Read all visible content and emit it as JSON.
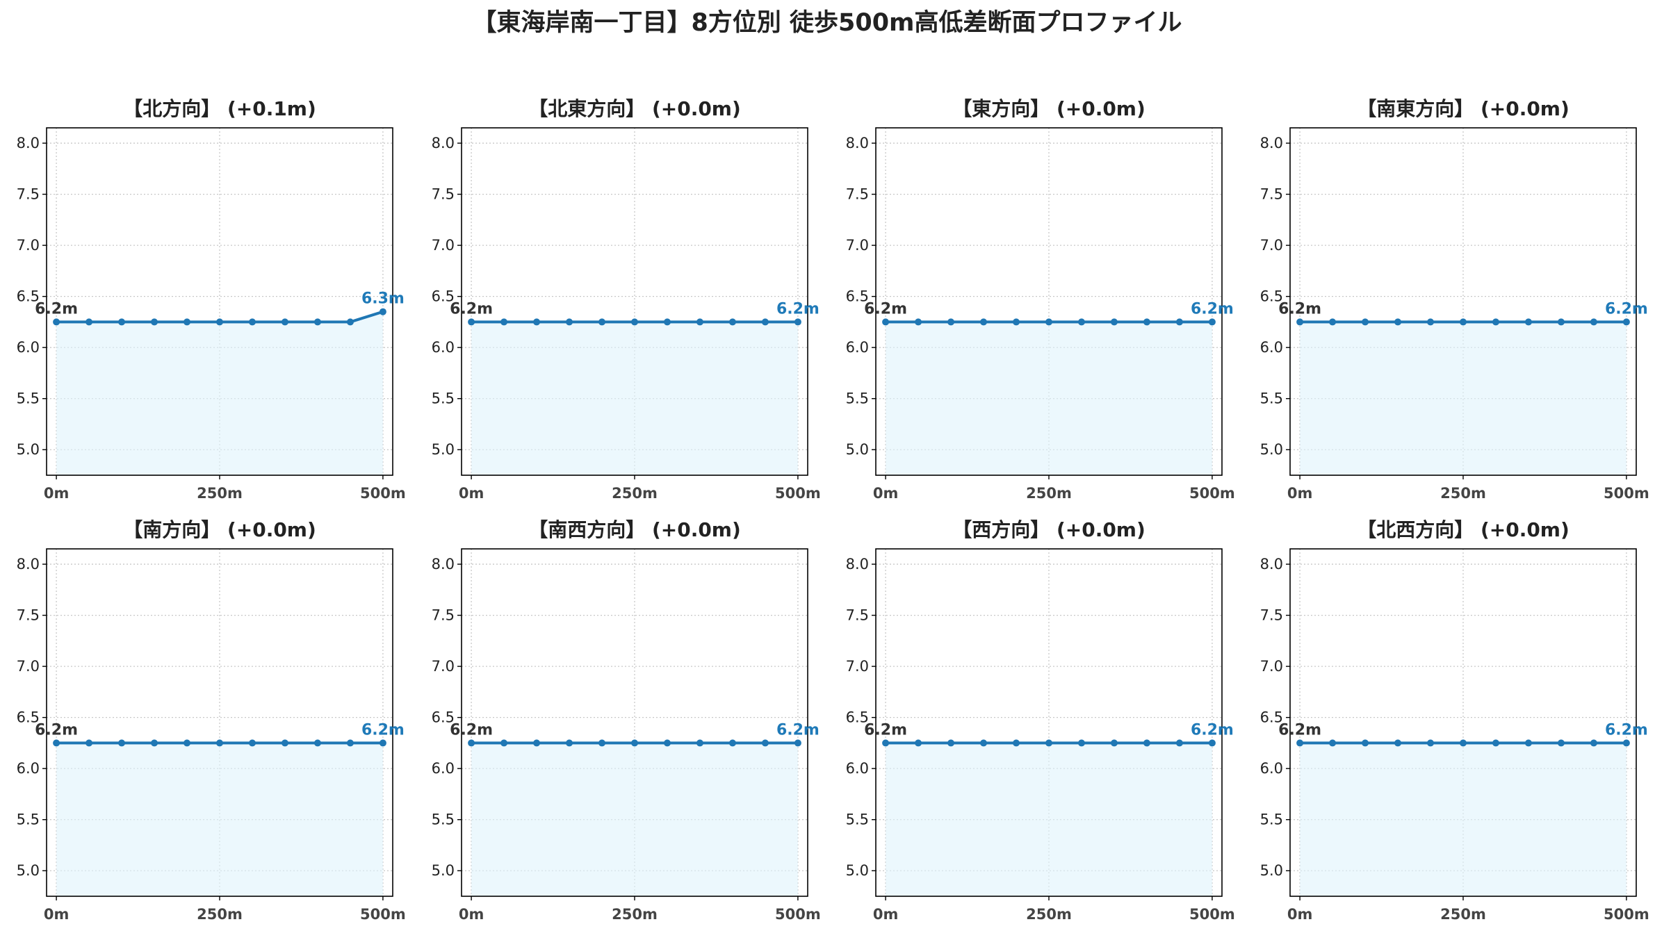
{
  "title": "【東海岸南一丁目】8方位別 徒歩500m高低差断面プロファイル",
  "colors": {
    "line": "#1f77b4",
    "fill": "#e0f3fb",
    "grid": "#c8c8c8",
    "frame": "#000000",
    "start_label": "#333333",
    "end_label": "#1f7ab8"
  },
  "chart_data": [
    {
      "type": "area",
      "title": "【北方向】 (+0.1m)",
      "x": [
        0,
        50,
        100,
        150,
        200,
        250,
        300,
        350,
        400,
        450,
        500
      ],
      "values": [
        6.25,
        6.25,
        6.25,
        6.25,
        6.25,
        6.25,
        6.25,
        6.25,
        6.25,
        6.25,
        6.35
      ],
      "start_label": "6.2m",
      "end_label": "6.3m",
      "xlim": [
        -15,
        515
      ],
      "ylim": [
        4.75,
        8.15
      ],
      "xticks": [
        0,
        250,
        500
      ],
      "xtick_labels": [
        "0m",
        "250m",
        "500m"
      ],
      "yticks": [
        5.0,
        5.5,
        6.0,
        6.5,
        7.0,
        7.5,
        8.0
      ],
      "ytick_labels": [
        "5.0",
        "5.5",
        "6.0",
        "6.5",
        "7.0",
        "7.5",
        "8.0"
      ],
      "grid": true
    },
    {
      "type": "area",
      "title": "【北東方向】 (+0.0m)",
      "x": [
        0,
        50,
        100,
        150,
        200,
        250,
        300,
        350,
        400,
        450,
        500
      ],
      "values": [
        6.25,
        6.25,
        6.25,
        6.25,
        6.25,
        6.25,
        6.25,
        6.25,
        6.25,
        6.25,
        6.25
      ],
      "start_label": "6.2m",
      "end_label": "6.2m",
      "xlim": [
        -15,
        515
      ],
      "ylim": [
        4.75,
        8.15
      ],
      "xticks": [
        0,
        250,
        500
      ],
      "xtick_labels": [
        "0m",
        "250m",
        "500m"
      ],
      "yticks": [
        5.0,
        5.5,
        6.0,
        6.5,
        7.0,
        7.5,
        8.0
      ],
      "ytick_labels": [
        "5.0",
        "5.5",
        "6.0",
        "6.5",
        "7.0",
        "7.5",
        "8.0"
      ],
      "grid": true
    },
    {
      "type": "area",
      "title": "【東方向】 (+0.0m)",
      "x": [
        0,
        50,
        100,
        150,
        200,
        250,
        300,
        350,
        400,
        450,
        500
      ],
      "values": [
        6.25,
        6.25,
        6.25,
        6.25,
        6.25,
        6.25,
        6.25,
        6.25,
        6.25,
        6.25,
        6.25
      ],
      "start_label": "6.2m",
      "end_label": "6.2m",
      "xlim": [
        -15,
        515
      ],
      "ylim": [
        4.75,
        8.15
      ],
      "xticks": [
        0,
        250,
        500
      ],
      "xtick_labels": [
        "0m",
        "250m",
        "500m"
      ],
      "yticks": [
        5.0,
        5.5,
        6.0,
        6.5,
        7.0,
        7.5,
        8.0
      ],
      "ytick_labels": [
        "5.0",
        "5.5",
        "6.0",
        "6.5",
        "7.0",
        "7.5",
        "8.0"
      ],
      "grid": true
    },
    {
      "type": "area",
      "title": "【南東方向】 (+0.0m)",
      "x": [
        0,
        50,
        100,
        150,
        200,
        250,
        300,
        350,
        400,
        450,
        500
      ],
      "values": [
        6.25,
        6.25,
        6.25,
        6.25,
        6.25,
        6.25,
        6.25,
        6.25,
        6.25,
        6.25,
        6.25
      ],
      "start_label": "6.2m",
      "end_label": "6.2m",
      "xlim": [
        -15,
        515
      ],
      "ylim": [
        4.75,
        8.15
      ],
      "xticks": [
        0,
        250,
        500
      ],
      "xtick_labels": [
        "0m",
        "250m",
        "500m"
      ],
      "yticks": [
        5.0,
        5.5,
        6.0,
        6.5,
        7.0,
        7.5,
        8.0
      ],
      "ytick_labels": [
        "5.0",
        "5.5",
        "6.0",
        "6.5",
        "7.0",
        "7.5",
        "8.0"
      ],
      "grid": true
    },
    {
      "type": "area",
      "title": "【南方向】 (+0.0m)",
      "x": [
        0,
        50,
        100,
        150,
        200,
        250,
        300,
        350,
        400,
        450,
        500
      ],
      "values": [
        6.25,
        6.25,
        6.25,
        6.25,
        6.25,
        6.25,
        6.25,
        6.25,
        6.25,
        6.25,
        6.25
      ],
      "start_label": "6.2m",
      "end_label": "6.2m",
      "xlim": [
        -15,
        515
      ],
      "ylim": [
        4.75,
        8.15
      ],
      "xticks": [
        0,
        250,
        500
      ],
      "xtick_labels": [
        "0m",
        "250m",
        "500m"
      ],
      "yticks": [
        5.0,
        5.5,
        6.0,
        6.5,
        7.0,
        7.5,
        8.0
      ],
      "ytick_labels": [
        "5.0",
        "5.5",
        "6.0",
        "6.5",
        "7.0",
        "7.5",
        "8.0"
      ],
      "grid": true
    },
    {
      "type": "area",
      "title": "【南西方向】 (+0.0m)",
      "x": [
        0,
        50,
        100,
        150,
        200,
        250,
        300,
        350,
        400,
        450,
        500
      ],
      "values": [
        6.25,
        6.25,
        6.25,
        6.25,
        6.25,
        6.25,
        6.25,
        6.25,
        6.25,
        6.25,
        6.25
      ],
      "start_label": "6.2m",
      "end_label": "6.2m",
      "xlim": [
        -15,
        515
      ],
      "ylim": [
        4.75,
        8.15
      ],
      "xticks": [
        0,
        250,
        500
      ],
      "xtick_labels": [
        "0m",
        "250m",
        "500m"
      ],
      "yticks": [
        5.0,
        5.5,
        6.0,
        6.5,
        7.0,
        7.5,
        8.0
      ],
      "ytick_labels": [
        "5.0",
        "5.5",
        "6.0",
        "6.5",
        "7.0",
        "7.5",
        "8.0"
      ],
      "grid": true
    },
    {
      "type": "area",
      "title": "【西方向】 (+0.0m)",
      "x": [
        0,
        50,
        100,
        150,
        200,
        250,
        300,
        350,
        400,
        450,
        500
      ],
      "values": [
        6.25,
        6.25,
        6.25,
        6.25,
        6.25,
        6.25,
        6.25,
        6.25,
        6.25,
        6.25,
        6.25
      ],
      "start_label": "6.2m",
      "end_label": "6.2m",
      "xlim": [
        -15,
        515
      ],
      "ylim": [
        4.75,
        8.15
      ],
      "xticks": [
        0,
        250,
        500
      ],
      "xtick_labels": [
        "0m",
        "250m",
        "500m"
      ],
      "yticks": [
        5.0,
        5.5,
        6.0,
        6.5,
        7.0,
        7.5,
        8.0
      ],
      "ytick_labels": [
        "5.0",
        "5.5",
        "6.0",
        "6.5",
        "7.0",
        "7.5",
        "8.0"
      ],
      "grid": true
    },
    {
      "type": "area",
      "title": "【北西方向】 (+0.0m)",
      "x": [
        0,
        50,
        100,
        150,
        200,
        250,
        300,
        350,
        400,
        450,
        500
      ],
      "values": [
        6.25,
        6.25,
        6.25,
        6.25,
        6.25,
        6.25,
        6.25,
        6.25,
        6.25,
        6.25,
        6.25
      ],
      "start_label": "6.2m",
      "end_label": "6.2m",
      "xlim": [
        -15,
        515
      ],
      "ylim": [
        4.75,
        8.15
      ],
      "xticks": [
        0,
        250,
        500
      ],
      "xtick_labels": [
        "0m",
        "250m",
        "500m"
      ],
      "yticks": [
        5.0,
        5.5,
        6.0,
        6.5,
        7.0,
        7.5,
        8.0
      ],
      "ytick_labels": [
        "5.0",
        "5.5",
        "6.0",
        "6.5",
        "7.0",
        "7.5",
        "8.0"
      ],
      "grid": true
    }
  ]
}
